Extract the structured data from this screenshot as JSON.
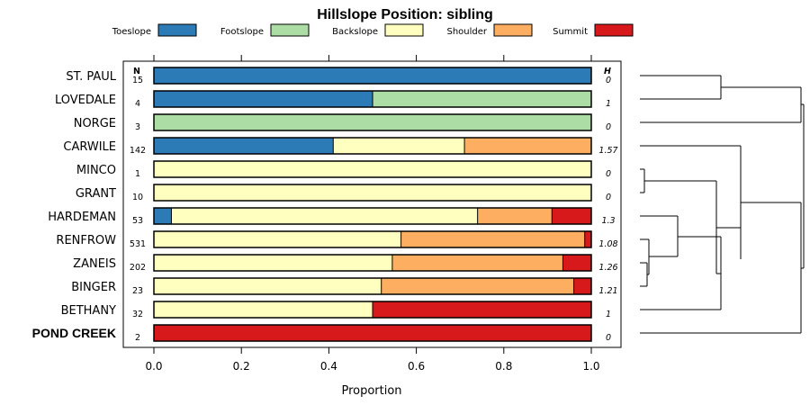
{
  "chart_data": {
    "type": "bar",
    "stacked": true,
    "orientation": "horizontal",
    "title": "Hillslope Position: sibling",
    "xlabel": "Proportion",
    "ylabel": "",
    "xlim": [
      0,
      1
    ],
    "x_ticks": [
      "0.0",
      "0.2",
      "0.4",
      "0.6",
      "0.8",
      "1.0"
    ],
    "x_tick_values": [
      0,
      0.2,
      0.4,
      0.6,
      0.8,
      1.0
    ],
    "n_header": "N",
    "h_header": "H",
    "legend_position": "top",
    "legend": [
      {
        "name": "Toeslope",
        "color": "#2c7bb6"
      },
      {
        "name": "Footslope",
        "color": "#abdda4"
      },
      {
        "name": "Backslope",
        "color": "#ffffbf"
      },
      {
        "name": "Shoulder",
        "color": "#fdae61"
      },
      {
        "name": "Summit",
        "color": "#d7191c"
      }
    ],
    "categories": [
      "ST. PAUL",
      "LOVEDALE",
      "NORGE",
      "CARWILE",
      "MINCO",
      "GRANT",
      "HARDEMAN",
      "RENFROW",
      "ZANEIS",
      "BINGER",
      "BETHANY",
      "POND CREEK"
    ],
    "highlighted_category": "POND CREEK",
    "n": [
      "15",
      "4",
      "3",
      "142",
      "1",
      "10",
      "53",
      "531",
      "202",
      "23",
      "32",
      "2"
    ],
    "h": [
      "0",
      "1",
      "0",
      "1.57",
      "0",
      "0",
      "1.3",
      "1.08",
      "1.26",
      "1.21",
      "1",
      "0"
    ],
    "series": [
      {
        "name": "Toeslope",
        "values": [
          1.0,
          0.5,
          0.0,
          0.41,
          0.0,
          0.0,
          0.04,
          0.0,
          0.0,
          0.0,
          0.0,
          0.0
        ]
      },
      {
        "name": "Footslope",
        "values": [
          0.0,
          0.5,
          1.0,
          0.0,
          0.0,
          0.0,
          0.0,
          0.0,
          0.0,
          0.0,
          0.0,
          0.0
        ]
      },
      {
        "name": "Backslope",
        "values": [
          0.0,
          0.0,
          0.0,
          0.3,
          1.0,
          1.0,
          0.7,
          0.565,
          0.545,
          0.52,
          0.5,
          0.0
        ]
      },
      {
        "name": "Shoulder",
        "values": [
          0.0,
          0.0,
          0.0,
          0.29,
          0.0,
          0.0,
          0.17,
          0.42,
          0.39,
          0.44,
          0.0,
          0.0
        ]
      },
      {
        "name": "Summit",
        "values": [
          0.0,
          0.0,
          0.0,
          0.0,
          0.0,
          0.0,
          0.09,
          0.015,
          0.065,
          0.04,
          0.5,
          1.0
        ]
      }
    ],
    "dendrogram": "hierarchical clustering tree of series (drawn at right)"
  }
}
